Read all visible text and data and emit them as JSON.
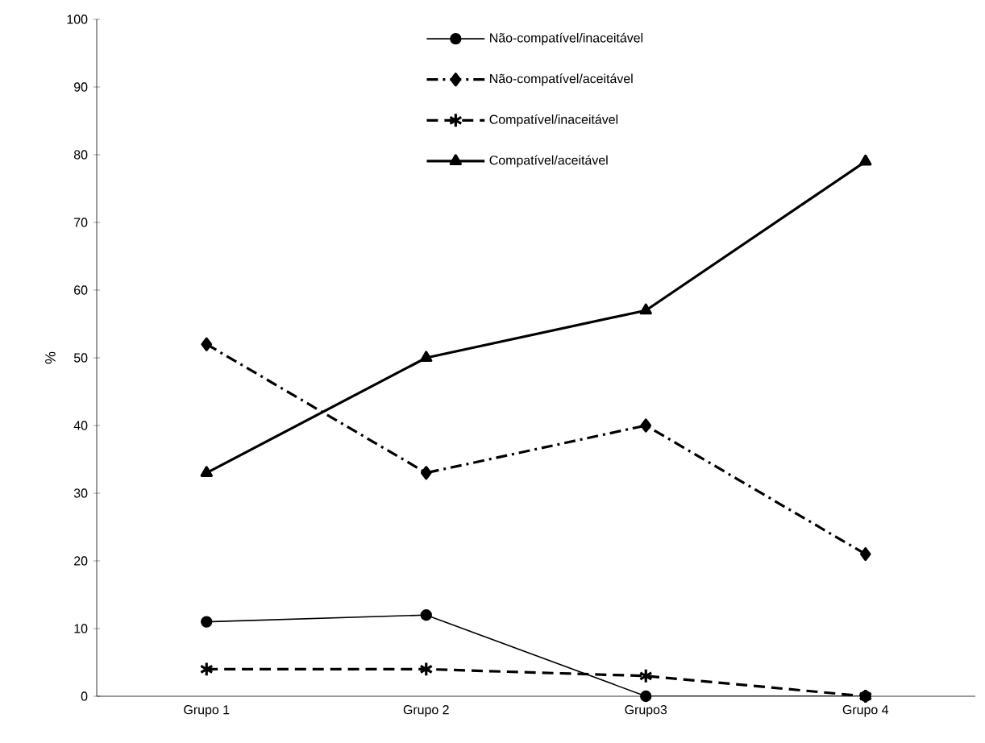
{
  "chart_data": {
    "type": "line",
    "ylabel": "%",
    "categories": [
      "Grupo 1",
      "Grupo 2",
      "Grupo3",
      "Grupo 4"
    ],
    "series": [
      {
        "name": "Não-compatível/inaceitável",
        "color": "#000000",
        "marker": "circle",
        "line_style": "solid",
        "values": [
          11,
          12,
          0,
          0
        ]
      },
      {
        "name": "Não-compatível/aceitável",
        "color": "#000000",
        "marker": "diamond",
        "line_style": "dashdot",
        "values": [
          52,
          33,
          40,
          21
        ]
      },
      {
        "name": "Compatível/inaceitável",
        "color": "#000000",
        "marker": "cross",
        "line_style": "dashed",
        "values": [
          4,
          4,
          3,
          0
        ]
      },
      {
        "name": "Compatível/aceitável",
        "color": "#000000",
        "marker": "triangle",
        "line_style": "solid",
        "values": [
          33,
          50,
          57,
          79
        ]
      }
    ],
    "ylim": [
      0,
      100
    ],
    "yticks": [
      0,
      10,
      20,
      30,
      40,
      50,
      60,
      70,
      80,
      90,
      100
    ],
    "grid": false,
    "legend": "top"
  }
}
